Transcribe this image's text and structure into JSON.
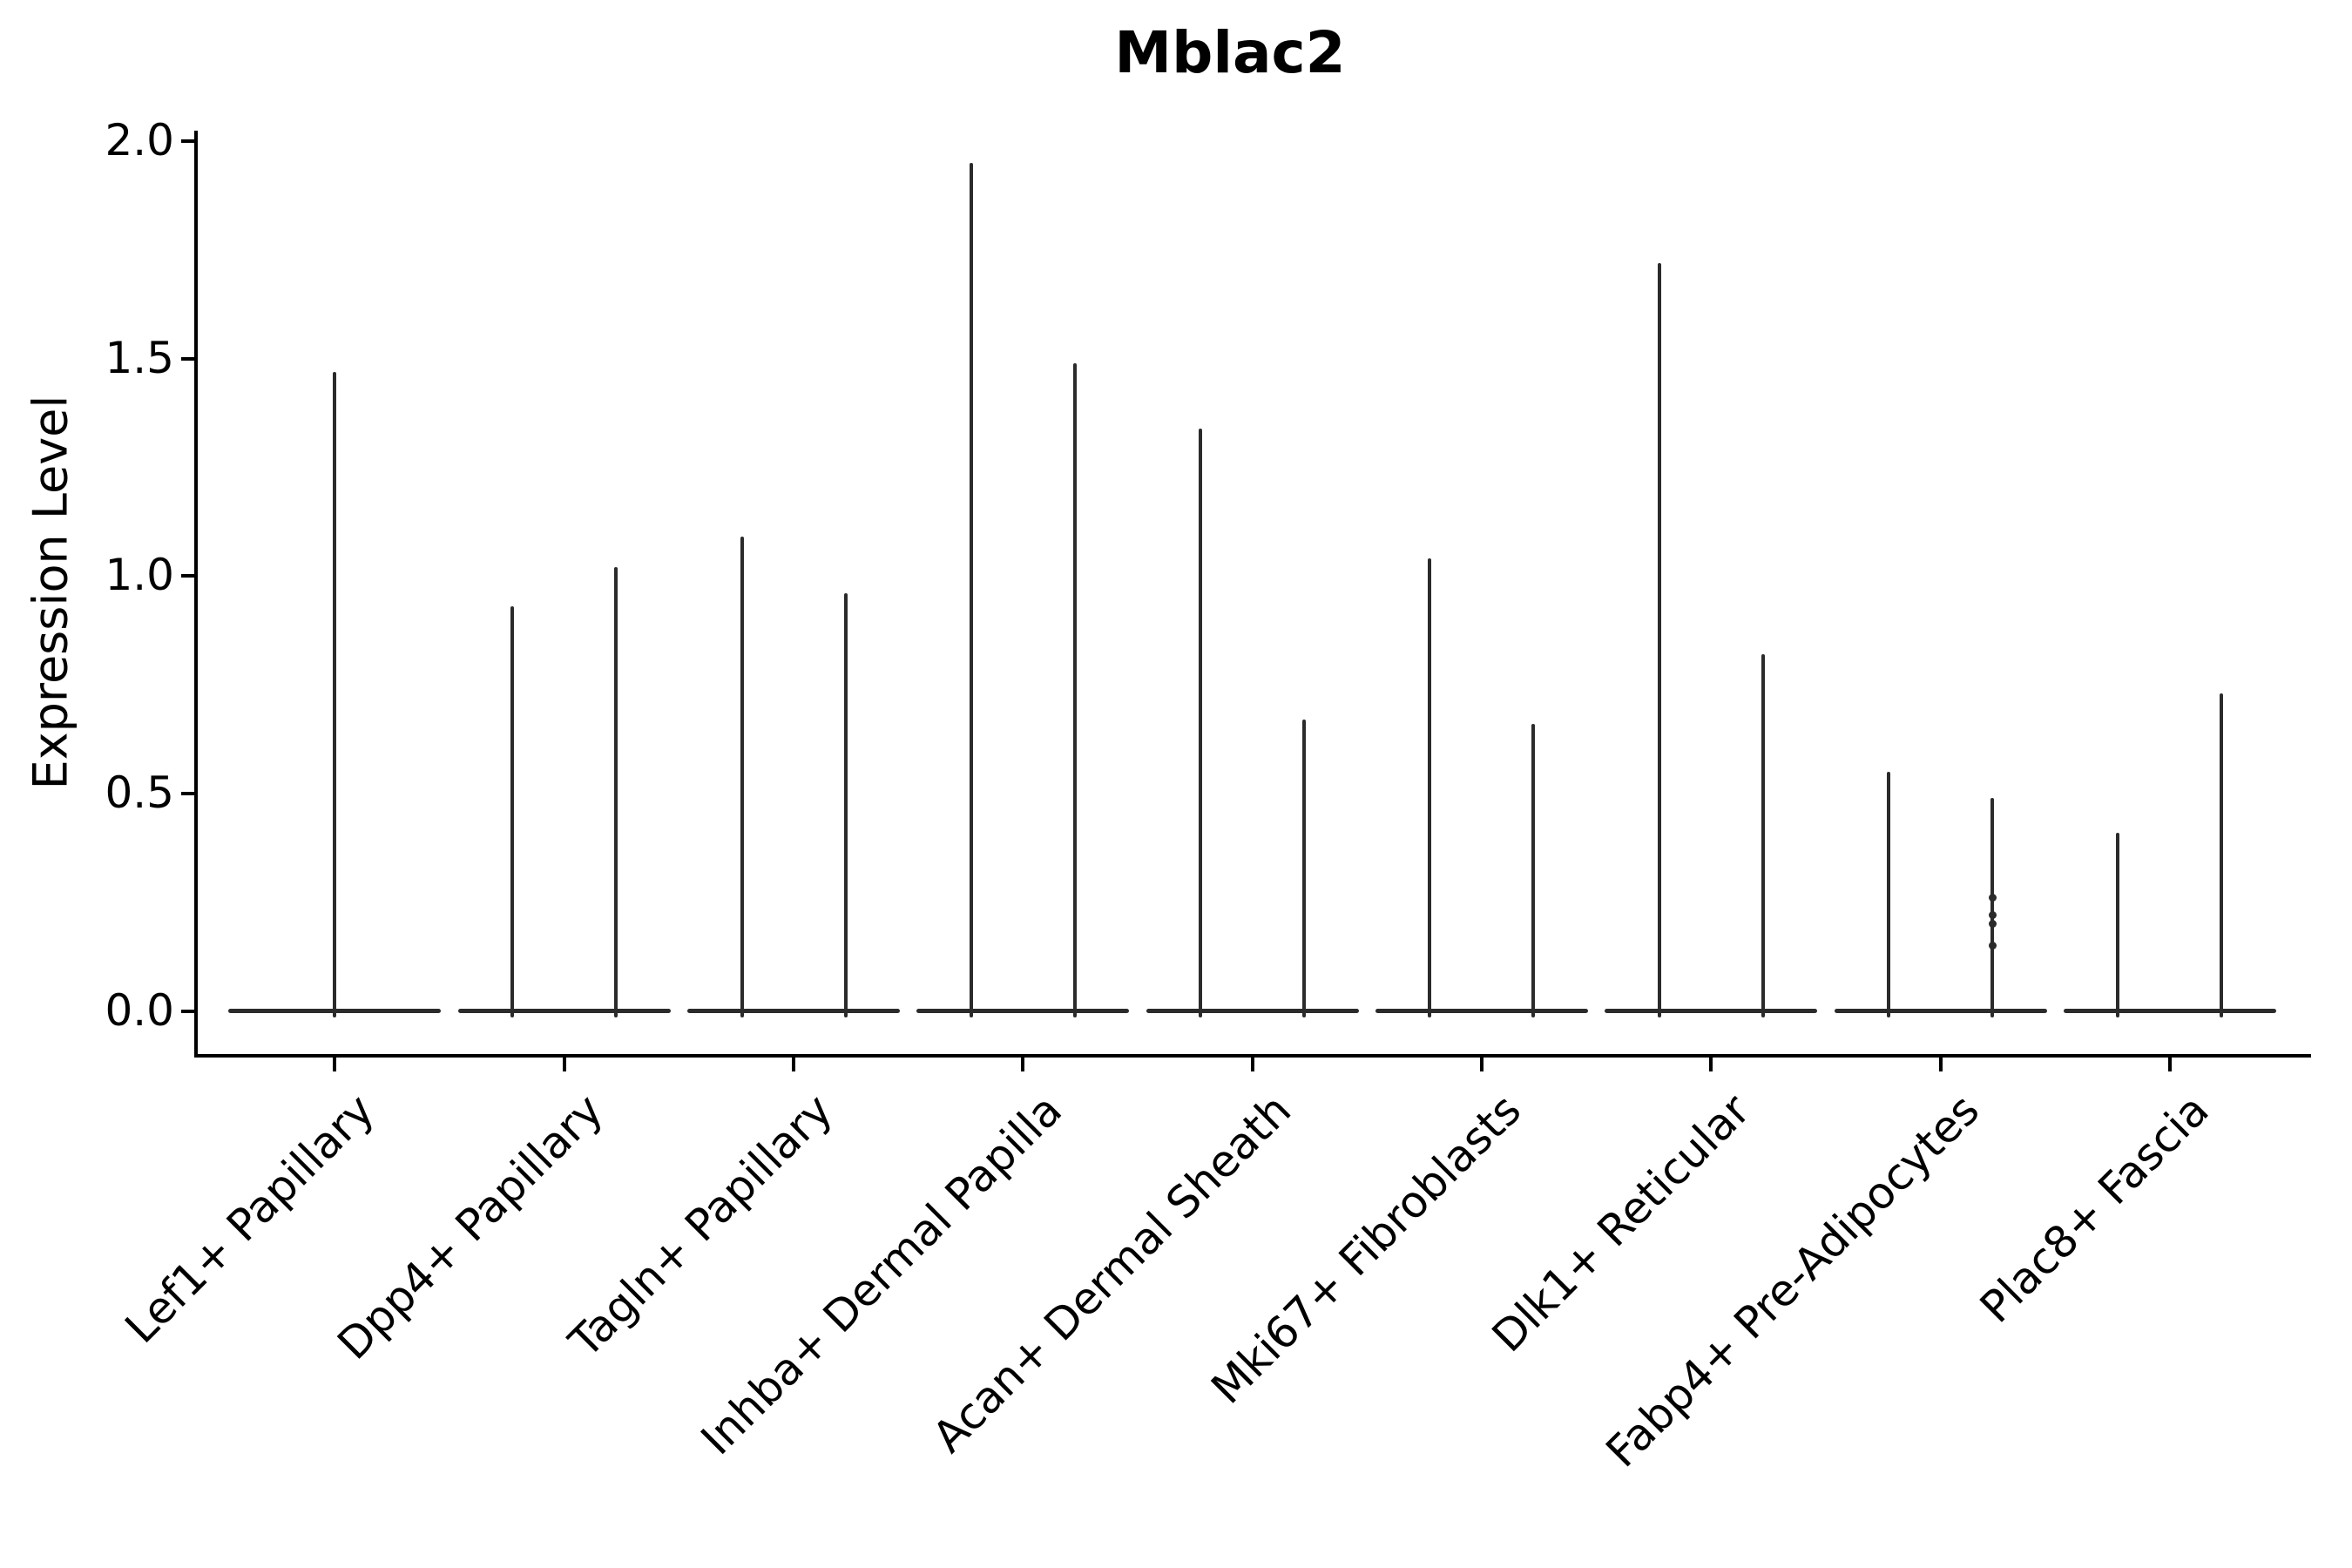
{
  "title": "Mblac2",
  "y_axis": {
    "label": "Expression Level",
    "tick_labels": [
      "0.0",
      "0.5",
      "1.0",
      "1.5",
      "2.0"
    ]
  },
  "chart_data": {
    "type": "violin",
    "title": "Mblac2",
    "xlabel": "",
    "ylabel": "Expression Level",
    "ylim": [
      -0.1,
      2.05
    ],
    "yticks": [
      0.0,
      0.5,
      1.0,
      1.5,
      2.0
    ],
    "grid": false,
    "legend": "none",
    "violin_color": "#2b2b2b",
    "axis_color": "#000000",
    "categories": [
      "Lef1+ Papillary",
      "Dpp4+ Papillary",
      "Tagln+ Papillary",
      "Inhba+ Dermal Papilla",
      "Acan+ Dermal Sheath",
      "Mki67+ Fibroblasts",
      "Dlk1+ Reticular",
      "Fabp4+ Pre-Adipocytes",
      "Plac8+ Fascia"
    ],
    "violins": [
      {
        "category": "Lef1+ Papillary",
        "spike_maxima": [
          1.47
        ]
      },
      {
        "category": "Dpp4+ Papillary",
        "spike_maxima": [
          0.93,
          1.02
        ]
      },
      {
        "category": "Tagln+ Papillary",
        "spike_maxima": [
          1.09,
          0.96
        ]
      },
      {
        "category": "Inhba+ Dermal Papilla",
        "spike_maxima": [
          1.95,
          1.49
        ]
      },
      {
        "category": "Acan+ Dermal Sheath",
        "spike_maxima": [
          1.34,
          0.67
        ]
      },
      {
        "category": "Mki67+ Fibroblasts",
        "spike_maxima": [
          1.04,
          0.66
        ]
      },
      {
        "category": "Dlk1+ Reticular",
        "spike_maxima": [
          1.72,
          0.82
        ]
      },
      {
        "category": "Fabp4+ Pre-Adipocytes",
        "spike_maxima": [
          0.55,
          0.49
        ],
        "point_values_second_violin": [
          0.26,
          0.22,
          0.2,
          0.15
        ]
      },
      {
        "category": "Plac8+ Fascia",
        "spike_maxima": [
          0.41,
          0.73
        ]
      }
    ]
  }
}
